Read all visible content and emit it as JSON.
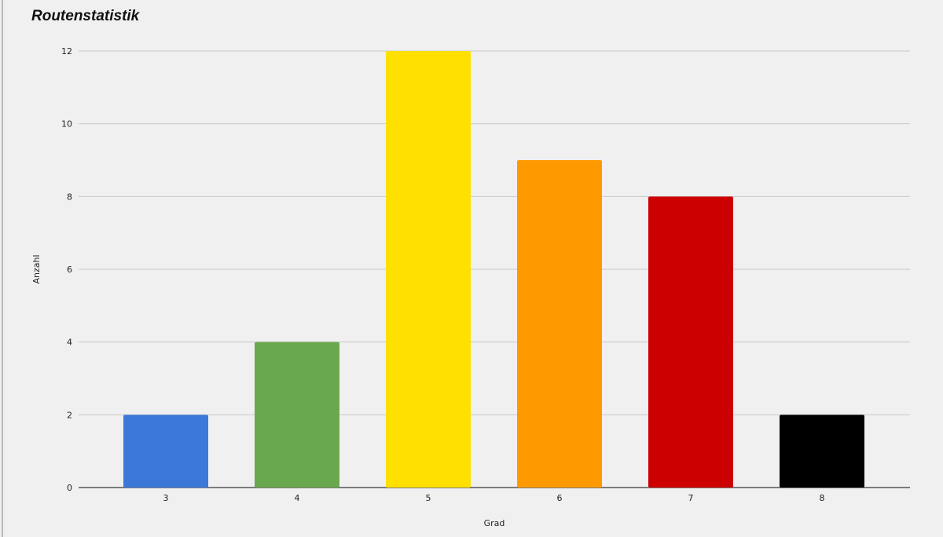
{
  "chart_data": {
    "type": "bar",
    "title": "Routenstatistik",
    "xlabel": "Grad",
    "ylabel": "Anzahl",
    "categories": [
      "3",
      "4",
      "5",
      "6",
      "7",
      "8"
    ],
    "values": [
      2,
      4,
      12,
      9,
      8,
      2
    ],
    "colors": [
      "#3c78d8",
      "#6aa84f",
      "#ffe000",
      "#ff9900",
      "#cc0000",
      "#000000"
    ],
    "ylim": [
      0,
      12
    ],
    "yticks": [
      0,
      2,
      4,
      6,
      8,
      10,
      12
    ],
    "grid": true,
    "legend": "none"
  }
}
